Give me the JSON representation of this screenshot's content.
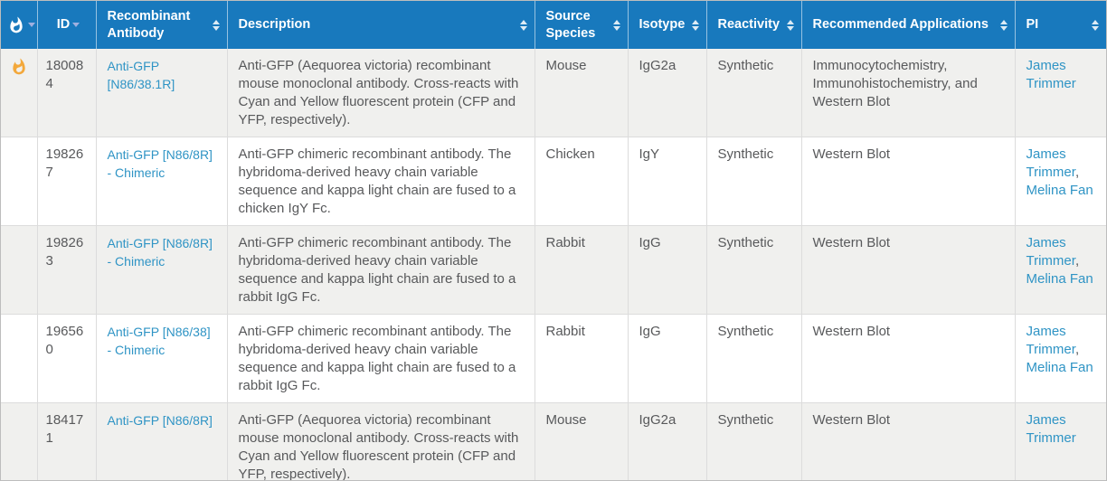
{
  "table": {
    "columns": [
      {
        "label": "",
        "icon": "flame-icon",
        "sort_indicator": "down"
      },
      {
        "label": "ID",
        "sort_indicator": "down"
      },
      {
        "label": "Recombinant Antibody",
        "sort_indicator": "both"
      },
      {
        "label": "Description",
        "sort_indicator": "both"
      },
      {
        "label": "Source Species",
        "sort_indicator": "both"
      },
      {
        "label": "Isotype",
        "sort_indicator": "both"
      },
      {
        "label": "Reactivity",
        "sort_indicator": "both"
      },
      {
        "label": "Recommended Applications",
        "sort_indicator": "both"
      },
      {
        "label": "PI",
        "sort_indicator": "both"
      }
    ],
    "rows": [
      {
        "hot": true,
        "id": "180084",
        "antibody": "Anti-GFP [N86/38.1R]",
        "description": "Anti-GFP (Aequorea victoria) recombinant mouse monoclonal antibody. Cross-reacts with Cyan and Yellow fluorescent protein (CFP and YFP, respectively).",
        "source_species": "Mouse",
        "isotype": "IgG2a",
        "reactivity": "Synthetic",
        "applications": "Immunocytochemistry, Immunohistochemistry, and Western Blot",
        "pi": [
          "James Trimmer"
        ]
      },
      {
        "hot": false,
        "id": "198267",
        "antibody": "Anti-GFP [N86/8R] - Chimeric",
        "description": "Anti-GFP chimeric recombinant antibody. The hybridoma-derived heavy chain variable sequence and kappa light chain are fused to a chicken IgY Fc.",
        "source_species": "Chicken",
        "isotype": "IgY",
        "reactivity": "Synthetic",
        "applications": "Western Blot",
        "pi": [
          "James Trimmer",
          "Melina Fan"
        ]
      },
      {
        "hot": false,
        "id": "198263",
        "antibody": "Anti-GFP [N86/8R] - Chimeric",
        "description": "Anti-GFP chimeric recombinant antibody. The hybridoma-derived heavy chain variable sequence and kappa light chain are fused to a rabbit IgG Fc.",
        "source_species": "Rabbit",
        "isotype": "IgG",
        "reactivity": "Synthetic",
        "applications": "Western Blot",
        "pi": [
          "James Trimmer",
          "Melina Fan"
        ]
      },
      {
        "hot": false,
        "id": "196560",
        "antibody": "Anti-GFP [N86/38] - Chimeric",
        "description": "Anti-GFP chimeric recombinant antibody. The hybridoma-derived heavy chain variable sequence and kappa light chain are fused to a rabbit IgG Fc.",
        "source_species": "Rabbit",
        "isotype": "IgG",
        "reactivity": "Synthetic",
        "applications": "Western Blot",
        "pi": [
          "James Trimmer",
          "Melina Fan"
        ]
      },
      {
        "hot": false,
        "id": "184171",
        "antibody": "Anti-GFP [N86/8R]",
        "description": "Anti-GFP (Aequorea victoria) recombinant mouse monoclonal antibody. Cross-reacts with Cyan and Yellow fluorescent protein (CFP and YFP, respectively).",
        "source_species": "Mouse",
        "isotype": "IgG2a",
        "reactivity": "Synthetic",
        "applications": "Western Blot",
        "pi": [
          "James Trimmer"
        ]
      }
    ]
  },
  "colors": {
    "header_background": "#1879bd",
    "header_text": "#ffffff",
    "link": "#2f94c5",
    "body_text": "#58595b",
    "stripe_row": "#f0f0ee",
    "flame": "#f3a83b",
    "sorted_arrow": "#9fb0e0"
  }
}
